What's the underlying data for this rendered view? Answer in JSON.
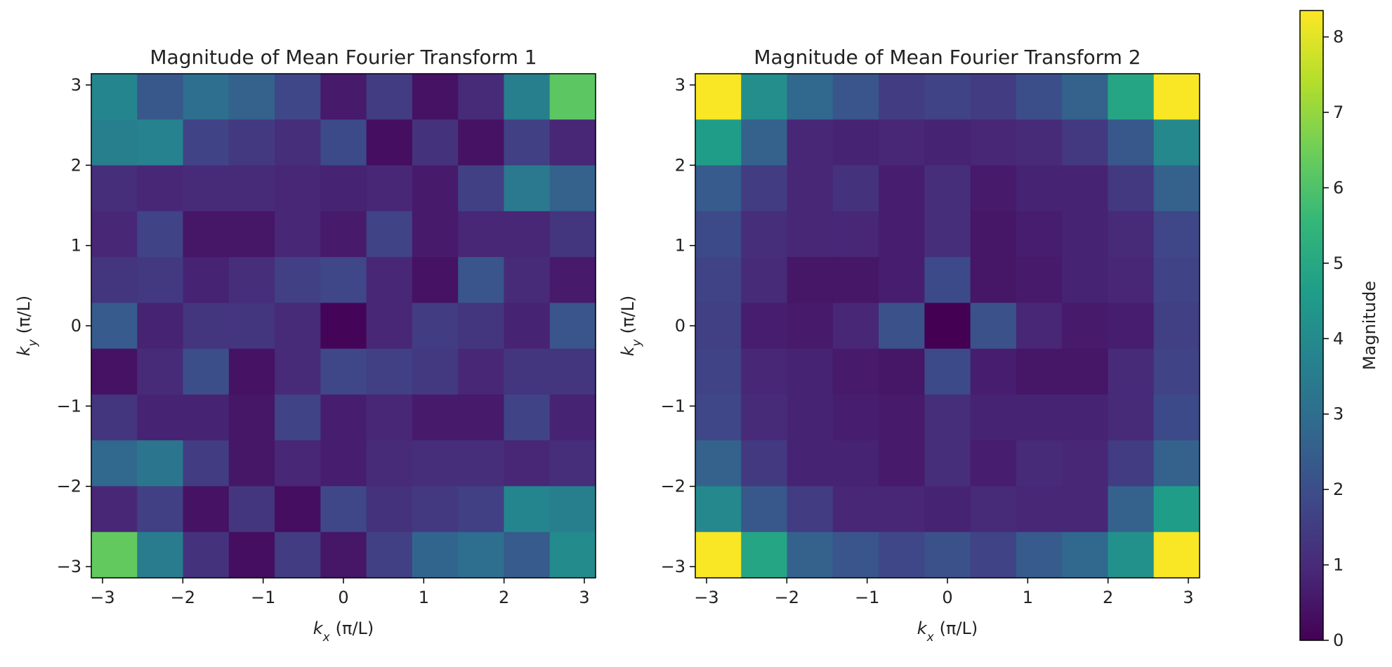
{
  "chart_data": [
    {
      "type": "heatmap",
      "title": "Magnitude of Mean Fourier Transform 1",
      "xlabel": {
        "symbol": "k",
        "sub": "x",
        "unit": "(π/L)"
      },
      "ylabel": {
        "symbol": "k",
        "sub": "y",
        "unit": "(π/L)"
      },
      "x_range": [
        -3.14,
        3.14
      ],
      "y_range": [
        -3.14,
        3.14
      ],
      "xticks": [
        -3,
        -2,
        -1,
        0,
        1,
        2,
        3
      ],
      "yticks": [
        -3,
        -2,
        -1,
        0,
        1,
        2,
        3
      ],
      "xtick_labels": [
        "−3",
        "−2",
        "−1",
        "0",
        "1",
        "2",
        "3"
      ],
      "ytick_labels": [
        "−3",
        "−2",
        "−1",
        "0",
        "1",
        "2",
        "3"
      ],
      "grid": false,
      "values_rows_top_to_bottom": [
        [
          3.8,
          2.3,
          3.0,
          2.6,
          1.8,
          0.6,
          1.5,
          0.4,
          1.0,
          3.6,
          6.2
        ],
        [
          3.6,
          3.7,
          1.7,
          1.4,
          1.1,
          1.9,
          0.3,
          1.2,
          0.4,
          1.6,
          0.9
        ],
        [
          1.1,
          0.9,
          1.0,
          1.0,
          0.9,
          0.8,
          0.9,
          0.6,
          1.6,
          3.4,
          2.6
        ],
        [
          0.9,
          1.7,
          0.5,
          0.5,
          0.9,
          0.6,
          1.7,
          0.6,
          0.9,
          0.9,
          1.3
        ],
        [
          1.3,
          1.4,
          0.8,
          1.1,
          1.6,
          1.8,
          0.9,
          0.4,
          2.2,
          1.0,
          0.6
        ],
        [
          2.4,
          0.8,
          1.3,
          1.3,
          1.0,
          0.1,
          0.9,
          1.5,
          1.3,
          0.8,
          2.2
        ],
        [
          0.4,
          1.0,
          2.0,
          0.4,
          1.0,
          1.8,
          1.6,
          1.4,
          0.9,
          1.3,
          1.3
        ],
        [
          1.3,
          0.8,
          0.8,
          0.5,
          1.7,
          0.7,
          0.9,
          0.6,
          0.6,
          1.7,
          0.8
        ],
        [
          2.8,
          3.3,
          1.5,
          0.5,
          0.9,
          0.7,
          1.0,
          1.1,
          1.1,
          0.9,
          1.1
        ],
        [
          0.9,
          1.6,
          0.4,
          1.3,
          0.3,
          1.8,
          1.2,
          1.4,
          1.6,
          3.8,
          3.6
        ],
        [
          6.3,
          3.5,
          1.2,
          0.3,
          1.5,
          0.5,
          1.6,
          2.7,
          3.0,
          2.4,
          4.0
        ]
      ]
    },
    {
      "type": "heatmap",
      "title": "Magnitude of Mean Fourier Transform 2",
      "xlabel": {
        "symbol": "k",
        "sub": "x",
        "unit": "(π/L)"
      },
      "ylabel": {
        "symbol": "k",
        "sub": "y",
        "unit": "(π/L)"
      },
      "x_range": [
        -3.14,
        3.14
      ],
      "y_range": [
        -3.14,
        3.14
      ],
      "xticks": [
        -3,
        -2,
        -1,
        0,
        1,
        2,
        3
      ],
      "yticks": [
        -3,
        -2,
        -1,
        0,
        1,
        2,
        3
      ],
      "xtick_labels": [
        "−3",
        "−2",
        "−1",
        "0",
        "1",
        "2",
        "3"
      ],
      "ytick_labels": [
        "−3",
        "−2",
        "−1",
        "0",
        "1",
        "2",
        "3"
      ],
      "grid": false,
      "values_rows_top_to_bottom": [
        [
          8.3,
          4.1,
          2.8,
          2.2,
          1.5,
          1.7,
          1.5,
          2.0,
          2.6,
          4.9,
          8.3
        ],
        [
          4.6,
          2.6,
          0.9,
          0.8,
          0.9,
          0.8,
          0.9,
          1.0,
          1.4,
          2.3,
          3.9
        ],
        [
          2.4,
          1.5,
          0.9,
          1.2,
          0.7,
          1.1,
          0.6,
          0.8,
          0.8,
          1.4,
          2.6
        ],
        [
          1.9,
          1.1,
          0.9,
          0.9,
          0.7,
          1.1,
          0.5,
          0.7,
          0.8,
          1.0,
          1.8
        ],
        [
          1.7,
          1.0,
          0.5,
          0.5,
          0.7,
          1.9,
          0.5,
          0.6,
          0.8,
          0.9,
          1.7
        ],
        [
          1.6,
          0.7,
          0.6,
          0.9,
          2.1,
          0.0,
          2.1,
          0.9,
          0.6,
          0.7,
          1.6
        ],
        [
          1.7,
          0.9,
          0.8,
          0.6,
          0.5,
          1.9,
          0.7,
          0.5,
          0.5,
          1.0,
          1.7
        ],
        [
          1.8,
          1.0,
          0.8,
          0.7,
          0.6,
          1.1,
          0.8,
          0.8,
          0.8,
          1.0,
          1.9
        ],
        [
          2.6,
          1.4,
          0.8,
          0.8,
          0.6,
          1.1,
          0.7,
          1.0,
          0.9,
          1.5,
          2.6
        ],
        [
          3.9,
          2.3,
          1.5,
          0.9,
          0.9,
          0.8,
          1.0,
          0.9,
          0.9,
          2.6,
          4.6
        ],
        [
          8.3,
          4.9,
          2.6,
          2.2,
          1.8,
          2.1,
          1.7,
          2.4,
          2.8,
          4.2,
          8.3
        ]
      ]
    }
  ],
  "colorbar": {
    "label": "Magnitude",
    "range": [
      0,
      8.35
    ],
    "ticks": [
      0,
      1,
      2,
      3,
      4,
      5,
      6,
      7,
      8
    ],
    "tick_labels": [
      "0",
      "1",
      "2",
      "3",
      "4",
      "5",
      "6",
      "7",
      "8"
    ],
    "colormap": "viridis"
  },
  "colors": {
    "viridis_stops": [
      "#440154",
      "#482878",
      "#3e4989",
      "#31688e",
      "#26828e",
      "#1f9e89",
      "#35b779",
      "#6ece58",
      "#b5de2b",
      "#fde725"
    ],
    "axis": "#000000",
    "text": "#222222"
  }
}
